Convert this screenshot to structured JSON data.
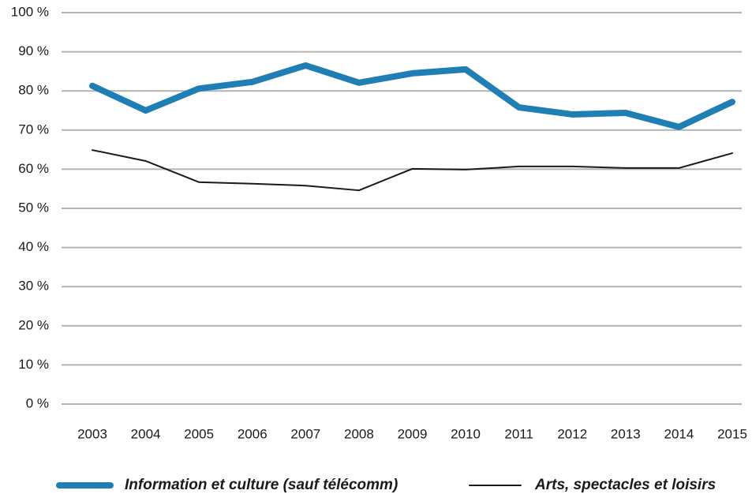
{
  "chart_data": {
    "type": "line",
    "categories": [
      "2003",
      "2004",
      "2005",
      "2006",
      "2007",
      "2008",
      "2009",
      "2010",
      "2011",
      "2012",
      "2013",
      "2014",
      "2015"
    ],
    "series": [
      {
        "name": "Information et culture (sauf télécomm)",
        "color": "#1f7fb5",
        "width": 8,
        "values": [
          81.3,
          75.0,
          80.6,
          82.3,
          86.5,
          82.1,
          84.5,
          85.5,
          75.8,
          74.0,
          74.4,
          70.8,
          77.2
        ]
      },
      {
        "name": "Arts, spectacles et loisirs",
        "color": "#1a1a1a",
        "width": 2,
        "values": [
          64.9,
          62.1,
          56.7,
          56.3,
          55.8,
          54.6,
          60.1,
          59.9,
          60.7,
          60.7,
          60.3,
          60.3,
          64.1
        ]
      }
    ],
    "ylim": [
      0,
      100
    ],
    "yticks": [
      {
        "value": 0,
        "label": "0 %"
      },
      {
        "value": 10,
        "label": "10 %"
      },
      {
        "value": 20,
        "label": "20 %"
      },
      {
        "value": 30,
        "label": "30 %"
      },
      {
        "value": 40,
        "label": "40 %"
      },
      {
        "value": 50,
        "label": "50 %"
      },
      {
        "value": 60,
        "label": "60 %"
      },
      {
        "value": 70,
        "label": "70 %"
      },
      {
        "value": 80,
        "label": "80 %"
      },
      {
        "value": 90,
        "label": "90 %"
      },
      {
        "value": 100,
        "label": "100 %"
      }
    ],
    "grid": true,
    "legend": "bottom"
  }
}
